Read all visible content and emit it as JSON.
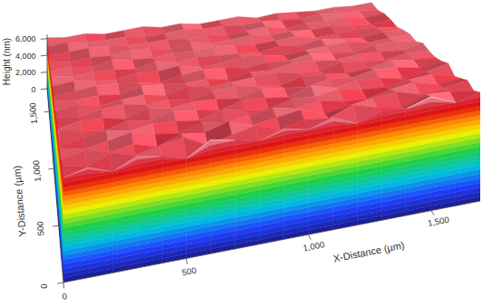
{
  "chart_data": {
    "type": "surface3d",
    "x_label": "X-Distance (µm)",
    "y_label": "Y-Distance (µm)",
    "z_label": "Height (nm)",
    "xlim": [
      0,
      1700
    ],
    "ylim": [
      0,
      1700
    ],
    "zlim": [
      0,
      6500
    ],
    "xticks": [
      0,
      500,
      {
        "value": 1000,
        "label": "1,000"
      },
      {
        "value": 1500,
        "label": "1,500"
      }
    ],
    "yticks": [
      0,
      500,
      {
        "value": 1000,
        "label": "1,000"
      },
      {
        "value": 1500,
        "label": "1,500"
      }
    ],
    "zticks": [
      0,
      {
        "value": 2000,
        "label": "2,000"
      },
      {
        "value": 4000,
        "label": "4,000"
      },
      {
        "value": 6000,
        "label": "6,000"
      }
    ],
    "x": [
      0,
      100,
      200,
      300,
      400,
      500,
      600,
      700,
      800,
      900,
      1000,
      1100,
      1200,
      1300,
      1400,
      1500,
      1600,
      1700
    ],
    "y": [
      0,
      100,
      200,
      300,
      400,
      500,
      600,
      700,
      800,
      900,
      1000,
      1100,
      1200,
      1300,
      1400,
      1500,
      1600,
      1700
    ],
    "z": [
      [
        5800,
        6100,
        5600,
        6200,
        5900,
        5500,
        6300,
        6000,
        5700,
        6100,
        5800,
        6200,
        5600,
        6000,
        5900,
        6300,
        5700,
        6000
      ],
      [
        6000,
        5700,
        6200,
        5800,
        6100,
        6300,
        5600,
        5900,
        6200,
        5700,
        6000,
        5800,
        6300,
        5900,
        5600,
        6100,
        6000,
        5800
      ],
      [
        5900,
        6200,
        5800,
        6000,
        5600,
        6100,
        5900,
        6300,
        5800,
        6000,
        6200,
        5700,
        5900,
        6100,
        6200,
        5800,
        5900,
        6100
      ],
      [
        6100,
        5800,
        6000,
        6300,
        5900,
        5700,
        6100,
        5800,
        6000,
        6200,
        5900,
        6100,
        5800,
        5700,
        6000,
        6200,
        5800,
        5900
      ],
      [
        5700,
        6000,
        6200,
        5900,
        6100,
        6000,
        5800,
        6200,
        5900,
        5700,
        6100,
        6000,
        6200,
        5900,
        5800,
        6000,
        6100,
        5700
      ],
      [
        6200,
        5900,
        5700,
        6100,
        5800,
        6200,
        6000,
        5700,
        6100,
        6000,
        5800,
        6300,
        5900,
        6100,
        6000,
        5700,
        5900,
        6200
      ],
      [
        5800,
        6100,
        6000,
        5700,
        6200,
        5900,
        6100,
        6000,
        5800,
        6200,
        6000,
        5800,
        6100,
        5900,
        6200,
        6100,
        5800,
        6000
      ],
      [
        6000,
        5800,
        6100,
        6200,
        5900,
        6000,
        5700,
        6100,
        6200,
        5900,
        5700,
        6100,
        6000,
        5800,
        5900,
        6200,
        6000,
        5900
      ],
      [
        5900,
        6200,
        5800,
        6000,
        6100,
        5800,
        6200,
        5900,
        6000,
        6100,
        6200,
        5900,
        5800,
        6200,
        6000,
        5800,
        6100,
        6000
      ],
      [
        6100,
        5900,
        6000,
        5800,
        6200,
        6100,
        5900,
        6000,
        5700,
        6000,
        5900,
        6200,
        6100,
        5900,
        6100,
        6000,
        5900,
        6200
      ],
      [
        5800,
        6000,
        6200,
        6100,
        5900,
        5700,
        6000,
        6200,
        6100,
        5800,
        6000,
        5900,
        6200,
        6000,
        5800,
        6100,
        6200,
        5900
      ],
      [
        6000,
        6200,
        5900,
        5800,
        6100,
        6000,
        6200,
        5800,
        5900,
        6200,
        6100,
        5800,
        6000,
        6100,
        6200,
        5900,
        6000,
        6100
      ],
      [
        6200,
        5900,
        6100,
        6000,
        5800,
        6200,
        5900,
        6100,
        6000,
        5900,
        5800,
        6100,
        5900,
        6200,
        6000,
        5800,
        6100,
        6000
      ],
      [
        5900,
        6100,
        5800,
        6200,
        6000,
        5900,
        6100,
        6000,
        6200,
        6100,
        5900,
        6000,
        6200,
        5800,
        5900,
        6100,
        6000,
        5800
      ],
      [
        6100,
        5800,
        6000,
        5900,
        6200,
        6100,
        5800,
        6200,
        5900,
        6000,
        6200,
        5900,
        6100,
        6000,
        6100,
        5900,
        5800,
        6000
      ],
      [
        5800,
        6000,
        6200,
        6100,
        5900,
        6000,
        6100,
        5900,
        6100,
        5800,
        6000,
        6200,
        5800,
        6100,
        6000,
        6200,
        5900,
        6100
      ],
      [
        6000,
        6200,
        5900,
        6000,
        6100,
        5800,
        6000,
        6200,
        6000,
        6100,
        5900,
        6100,
        6000,
        5900,
        6200,
        6000,
        6100,
        5900
      ],
      [
        6100,
        5900,
        6100,
        5800,
        6000,
        6200,
        5900,
        6100,
        5800,
        6000,
        6200,
        5800,
        6100,
        6000,
        5900,
        6100,
        6000,
        6200
      ]
    ]
  }
}
